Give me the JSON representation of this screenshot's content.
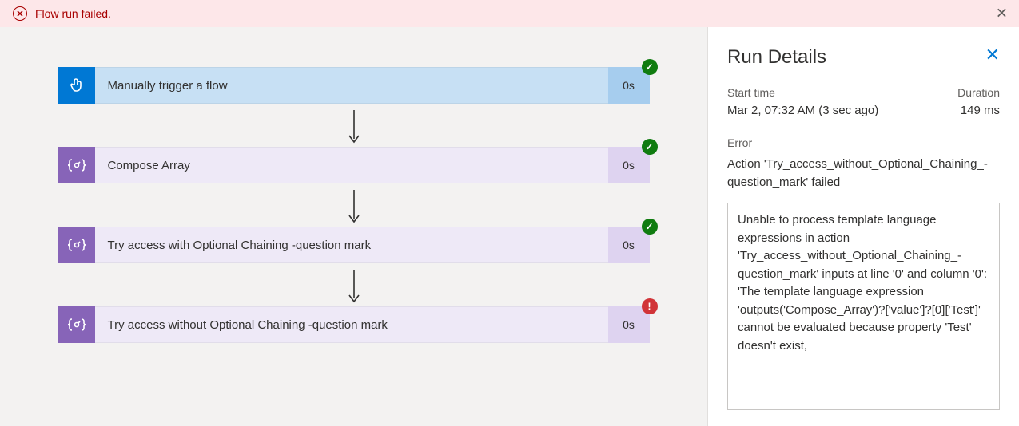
{
  "banner": {
    "text": "Flow run failed.",
    "bg": "#fde7e9",
    "fg": "#a80000"
  },
  "steps": [
    {
      "label": "Manually trigger a flow",
      "duration": "0s",
      "icon": "touch",
      "icon_bg": "#0078d4",
      "body_bg": "#c7e0f4",
      "dur_bg": "#a6cdee",
      "status": "success"
    },
    {
      "label": "Compose Array",
      "duration": "0s",
      "icon": "braces",
      "icon_bg": "#8764b8",
      "body_bg": "#eee9f7",
      "dur_bg": "#ded3f0",
      "status": "success"
    },
    {
      "label": "Try access with Optional Chaining -question mark",
      "duration": "0s",
      "icon": "braces",
      "icon_bg": "#8764b8",
      "body_bg": "#eee9f7",
      "dur_bg": "#ded3f0",
      "status": "success"
    },
    {
      "label": "Try access without Optional Chaining -question mark",
      "duration": "0s",
      "icon": "braces",
      "icon_bg": "#8764b8",
      "body_bg": "#eee9f7",
      "dur_bg": "#ded3f0",
      "status": "error"
    }
  ],
  "status_colors": {
    "success": "#107c10",
    "error": "#d13438"
  },
  "details": {
    "title": "Run Details",
    "start_label": "Start time",
    "duration_label": "Duration",
    "start_value": "Mar 2, 07:32 AM (3 sec ago)",
    "duration_value": "149 ms",
    "error_label": "Error",
    "error_action": "Action 'Try_access_without_Optional_Chaining_-question_mark' failed",
    "error_detail": "Unable to process template language expressions in action 'Try_access_without_Optional_Chaining_-question_mark' inputs at line '0' and column '0': 'The template language expression 'outputs('Compose_Array')?['value']?[0]['Test']' cannot be evaluated because property 'Test' doesn't exist,"
  }
}
